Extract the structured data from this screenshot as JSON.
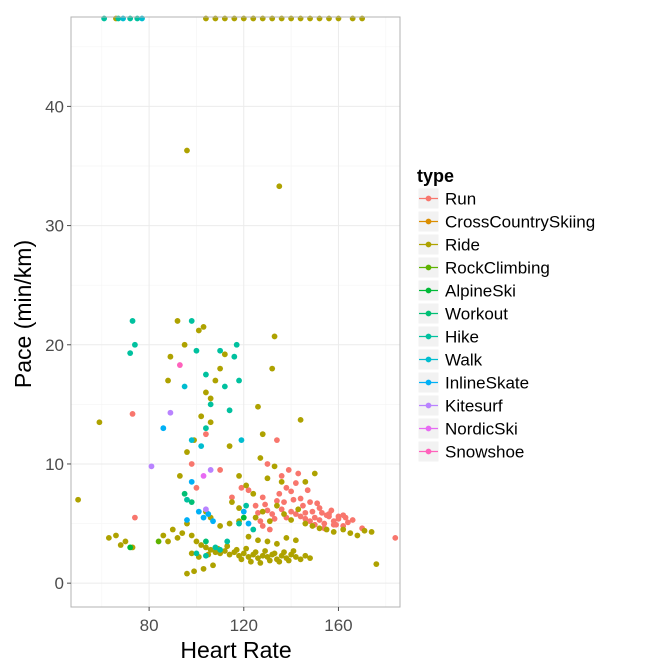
{
  "chart_data": {
    "type": "scatter",
    "xlabel": "Heart Rate",
    "ylabel": "Pace (min/km)",
    "xlim": [
      47,
      186
    ],
    "ylim": [
      -2,
      47.5
    ],
    "xticks": [
      80,
      120,
      160
    ],
    "yticks": [
      0,
      10,
      20,
      30,
      40
    ],
    "grid": true,
    "legend": {
      "title": "type",
      "position": "right"
    },
    "colors": {
      "panel_bg": "#ffffff",
      "grid_major": "#ebebeb",
      "grid_minor": "#f5f5f5",
      "panel_border": "#b3b3b3"
    },
    "series": [
      {
        "name": "Run",
        "color": "#F8766D",
        "points": [
          [
            125,
            6.5
          ],
          [
            128,
            7.2
          ],
          [
            130,
            6.1
          ],
          [
            132,
            5.8
          ],
          [
            134,
            6.9
          ],
          [
            136,
            6.2
          ],
          [
            138,
            5.5
          ],
          [
            140,
            6.0
          ],
          [
            142,
            5.8
          ],
          [
            144,
            5.6
          ],
          [
            146,
            5.4
          ],
          [
            148,
            5.2
          ],
          [
            150,
            5.5
          ],
          [
            152,
            5.3
          ],
          [
            154,
            5.0
          ],
          [
            156,
            5.6
          ],
          [
            158,
            5.2
          ],
          [
            160,
            5.4
          ],
          [
            162,
            4.8
          ],
          [
            164,
            5.1
          ],
          [
            135,
            7.5
          ],
          [
            138,
            8.0
          ],
          [
            141,
            7.0
          ],
          [
            145,
            6.5
          ],
          [
            149,
            6.0
          ],
          [
            153,
            5.9
          ],
          [
            157,
            6.1
          ],
          [
            126,
            5.9
          ],
          [
            129,
            6.6
          ],
          [
            133,
            5.4
          ],
          [
            137,
            6.8
          ],
          [
            139,
            9.5
          ],
          [
            142,
            8.4
          ],
          [
            147,
            7.8
          ],
          [
            151,
            6.7
          ],
          [
            155,
            5.7
          ],
          [
            159,
            4.9
          ],
          [
            163,
            5.5
          ],
          [
            166,
            5.3
          ],
          [
            170,
            4.6
          ],
          [
            184,
            3.8
          ],
          [
            122,
            7.8
          ],
          [
            119,
            8.0
          ],
          [
            115,
            7.2
          ],
          [
            110,
            9.5
          ],
          [
            104,
            12.5
          ],
          [
            100,
            8.0
          ],
          [
            98,
            10.0
          ],
          [
            73,
            14.2
          ],
          [
            74,
            5.5
          ],
          [
            131,
            4.5
          ],
          [
            136,
            9.0
          ],
          [
            143,
            9.2
          ],
          [
            130,
            10.0
          ],
          [
            134,
            12.0
          ],
          [
            128,
            4.8
          ],
          [
            127,
            5.2
          ],
          [
            140,
            7.7
          ],
          [
            144,
            7.1
          ],
          [
            148,
            6.8
          ],
          [
            152,
            6.3
          ],
          [
            156,
            5.8
          ],
          [
            160,
            5.6
          ],
          [
            146,
            5.9
          ],
          [
            150,
            4.9
          ],
          [
            154,
            4.6
          ],
          [
            158,
            4.9
          ],
          [
            162,
            5.7
          ]
        ]
      },
      {
        "name": "CrossCountrySkiing",
        "color": "#DB8E00",
        "points": []
      },
      {
        "name": "Ride",
        "color": "#AEA200",
        "points": [
          [
            50,
            7.0
          ],
          [
            59,
            13.5
          ],
          [
            63,
            3.8
          ],
          [
            66,
            4.0
          ],
          [
            68,
            3.2
          ],
          [
            70,
            3.5
          ],
          [
            73,
            3.0
          ],
          [
            86,
            4.0
          ],
          [
            88,
            3.5
          ],
          [
            90,
            4.5
          ],
          [
            92,
            3.8
          ],
          [
            94,
            4.2
          ],
          [
            96,
            5.0
          ],
          [
            98,
            4.0
          ],
          [
            100,
            3.5
          ],
          [
            102,
            3.2
          ],
          [
            104,
            3.0
          ],
          [
            106,
            2.8
          ],
          [
            108,
            2.6
          ],
          [
            110,
            2.5
          ],
          [
            112,
            2.7
          ],
          [
            114,
            2.4
          ],
          [
            116,
            2.6
          ],
          [
            118,
            2.3
          ],
          [
            120,
            2.5
          ],
          [
            122,
            2.2
          ],
          [
            124,
            2.4
          ],
          [
            126,
            2.1
          ],
          [
            128,
            2.3
          ],
          [
            130,
            2.2
          ],
          [
            132,
            2.4
          ],
          [
            134,
            2.0
          ],
          [
            136,
            2.3
          ],
          [
            138,
            2.1
          ],
          [
            140,
            2.4
          ],
          [
            142,
            2.2
          ],
          [
            144,
            2.0
          ],
          [
            146,
            2.3
          ],
          [
            148,
            2.1
          ],
          [
            105,
            2.4
          ],
          [
            109,
            2.9
          ],
          [
            113,
            3.1
          ],
          [
            117,
            2.8
          ],
          [
            121,
            2.9
          ],
          [
            125,
            2.6
          ],
          [
            129,
            2.7
          ],
          [
            133,
            2.5
          ],
          [
            137,
            2.6
          ],
          [
            141,
            2.7
          ],
          [
            119,
            2.0
          ],
          [
            123,
            1.8
          ],
          [
            127,
            1.7
          ],
          [
            131,
            1.9
          ],
          [
            135,
            1.8
          ],
          [
            139,
            1.9
          ],
          [
            107,
            1.5
          ],
          [
            103,
            1.2
          ],
          [
            99,
            1.0
          ],
          [
            96,
            0.8
          ],
          [
            98,
            2.5
          ],
          [
            101,
            2.2
          ],
          [
            125,
            5.5
          ],
          [
            128,
            6.0
          ],
          [
            131,
            5.2
          ],
          [
            134,
            6.5
          ],
          [
            137,
            5.8
          ],
          [
            140,
            5.3
          ],
          [
            143,
            6.2
          ],
          [
            146,
            5.0
          ],
          [
            149,
            4.8
          ],
          [
            152,
            4.6
          ],
          [
            155,
            4.5
          ],
          [
            158,
            4.3
          ],
          [
            162,
            4.5
          ],
          [
            165,
            4.2
          ],
          [
            168,
            4.0
          ],
          [
            171,
            4.4
          ],
          [
            174,
            4.3
          ],
          [
            176,
            1.6
          ],
          [
            93,
            9.0
          ],
          [
            96,
            11.0
          ],
          [
            99,
            12.0
          ],
          [
            102,
            14.0
          ],
          [
            104,
            16.0
          ],
          [
            106,
            13.5
          ],
          [
            108,
            17.0
          ],
          [
            110,
            18.0
          ],
          [
            95,
            20.0
          ],
          [
            101,
            21.2
          ],
          [
            103,
            21.5
          ],
          [
            106,
            15.5
          ],
          [
            112,
            19.2
          ],
          [
            114,
            11.5
          ],
          [
            118,
            9.0
          ],
          [
            121,
            8.2
          ],
          [
            124,
            7.5
          ],
          [
            127,
            10.5
          ],
          [
            130,
            8.8
          ],
          [
            133,
            9.8
          ],
          [
            136,
            8.5
          ],
          [
            132,
            18.0
          ],
          [
            133,
            20.7
          ],
          [
            96,
            36.3
          ],
          [
            135,
            33.3
          ],
          [
            126,
            14.8
          ],
          [
            128,
            12.5
          ],
          [
            88,
            17.0
          ],
          [
            89,
            19.0
          ],
          [
            92,
            22.0
          ],
          [
            110,
            4.8
          ],
          [
            114,
            5.0
          ],
          [
            118,
            5.2
          ],
          [
            106,
            5.5
          ],
          [
            104,
            6.0
          ],
          [
            122,
            3.9
          ],
          [
            126,
            3.6
          ],
          [
            130,
            3.5
          ],
          [
            134,
            3.3
          ],
          [
            138,
            3.8
          ],
          [
            142,
            3.6
          ],
          [
            115,
            6.8
          ],
          [
            118,
            6.3
          ],
          [
            146,
            8.5
          ],
          [
            150,
            9.2
          ],
          [
            144,
            13.7
          ],
          [
            66,
            47.4
          ],
          [
            104,
            47.4
          ],
          [
            108,
            47.4
          ],
          [
            112,
            47.4
          ],
          [
            116,
            47.4
          ],
          [
            120,
            47.4
          ],
          [
            124,
            47.4
          ],
          [
            128,
            47.4
          ],
          [
            132,
            47.4
          ],
          [
            136,
            47.4
          ],
          [
            140,
            47.4
          ],
          [
            144,
            47.4
          ],
          [
            148,
            47.4
          ],
          [
            152,
            47.4
          ],
          [
            156,
            47.4
          ],
          [
            160,
            47.4
          ],
          [
            166,
            47.4
          ],
          [
            170,
            47.4
          ]
        ]
      },
      {
        "name": "RockClimbing",
        "color": "#5EB300",
        "points": [
          [
            84,
            3.5
          ]
        ]
      },
      {
        "name": "AlpineSki",
        "color": "#00BA38",
        "points": [
          [
            72,
            3.0
          ],
          [
            120,
            5.5
          ]
        ]
      },
      {
        "name": "Workout",
        "color": "#00BF74",
        "points": [
          [
            95,
            7.5
          ],
          [
            98,
            6.8
          ],
          [
            104,
            3.5
          ]
        ]
      },
      {
        "name": "Hike",
        "color": "#00C19F",
        "points": [
          [
            72,
            19.3
          ],
          [
            73,
            22.0
          ],
          [
            74,
            20.0
          ],
          [
            98,
            22.0
          ],
          [
            100,
            19.5
          ],
          [
            104,
            17.5
          ],
          [
            106,
            15.0
          ],
          [
            110,
            19.5
          ],
          [
            112,
            16.5
          ],
          [
            114,
            14.5
          ],
          [
            116,
            19.0
          ],
          [
            118,
            17.0
          ],
          [
            117,
            20.0
          ],
          [
            104,
            13.0
          ],
          [
            108,
            3.0
          ],
          [
            110,
            2.8
          ],
          [
            113,
            3.5
          ],
          [
            118,
            5.0
          ],
          [
            121,
            6.5
          ],
          [
            124,
            4.5
          ],
          [
            96,
            7.0
          ],
          [
            100,
            2.5
          ],
          [
            104,
            2.3
          ],
          [
            61,
            47.4
          ],
          [
            67,
            47.4
          ],
          [
            72,
            47.4
          ],
          [
            75,
            47.4
          ]
        ]
      },
      {
        "name": "Walk",
        "color": "#00BDD0",
        "points": [
          [
            69,
            47.4
          ],
          [
            77,
            47.4
          ],
          [
            95,
            16.5
          ],
          [
            98,
            12.0
          ],
          [
            102,
            11.5
          ],
          [
            119,
            12.0
          ]
        ]
      },
      {
        "name": "InlineSkate",
        "color": "#00B0F6",
        "points": [
          [
            86,
            13.0
          ],
          [
            96,
            5.3
          ],
          [
            98,
            8.5
          ],
          [
            101,
            6.0
          ],
          [
            103,
            5.5
          ],
          [
            105,
            5.8
          ],
          [
            107,
            5.2
          ],
          [
            120,
            6.0
          ],
          [
            122,
            5.0
          ]
        ]
      },
      {
        "name": "Kitesurf",
        "color": "#B983FF",
        "points": [
          [
            81,
            9.8
          ],
          [
            89,
            14.3
          ],
          [
            104,
            6.2
          ],
          [
            106,
            9.5
          ]
        ]
      },
      {
        "name": "NordicSki",
        "color": "#E76BF3",
        "points": [
          [
            103,
            9.0
          ]
        ]
      },
      {
        "name": "Snowshoe",
        "color": "#FF62BC",
        "points": [
          [
            93,
            18.3
          ]
        ]
      }
    ]
  }
}
